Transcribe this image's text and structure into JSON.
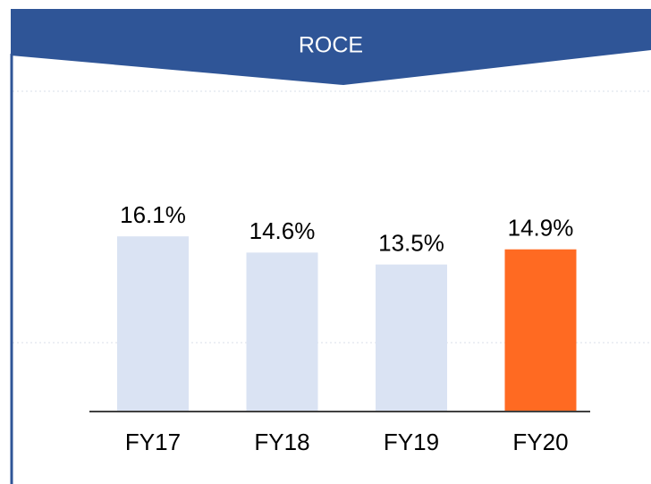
{
  "chart_data": {
    "type": "bar",
    "title": "ROCE",
    "categories": [
      "FY17",
      "FY18",
      "FY19",
      "FY20"
    ],
    "values": [
      16.1,
      14.6,
      13.5,
      14.9
    ],
    "value_labels": [
      "16.1%",
      "14.6%",
      "13.5%",
      "14.9%"
    ],
    "colors": [
      "#dae3f3",
      "#dae3f3",
      "#dae3f3",
      "#ff6a22"
    ]
  }
}
